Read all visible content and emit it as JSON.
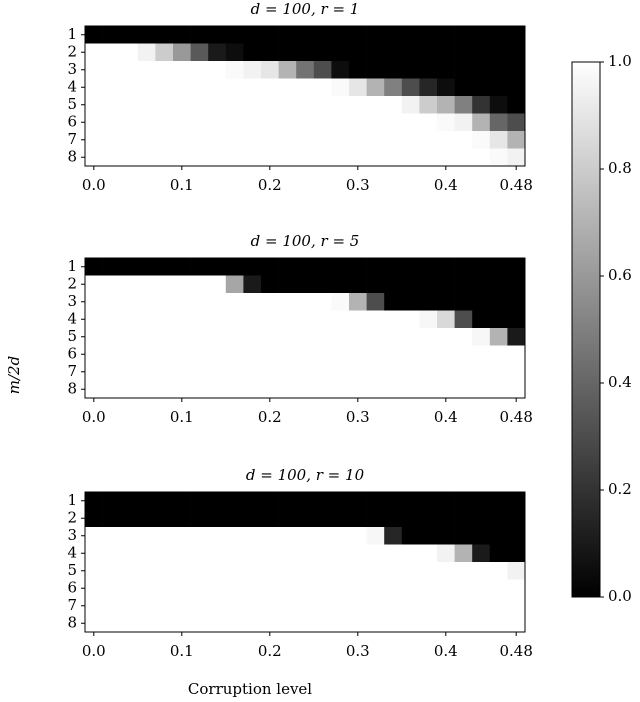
{
  "chart_data": [
    {
      "type": "heatmap",
      "title": "d = 100, r = 1",
      "x": [
        0,
        0.02,
        0.04,
        0.06,
        0.08,
        0.1,
        0.12,
        0.14,
        0.16,
        0.18,
        0.2,
        0.22,
        0.24,
        0.26,
        0.28,
        0.3,
        0.32,
        0.34,
        0.36,
        0.38,
        0.4,
        0.42,
        0.44,
        0.46,
        0.48
      ],
      "y": [
        1,
        2,
        3,
        4,
        5,
        6,
        7,
        8
      ],
      "xlim": [
        -0.01,
        0.49
      ],
      "xticks": [
        {
          "value": 0,
          "label": "0.0"
        },
        0.1,
        0.2,
        0.3,
        0.4,
        0.48
      ],
      "values": [
        [
          0,
          0,
          0,
          0,
          0,
          0,
          0,
          0,
          0,
          0,
          0,
          0,
          0,
          0,
          0,
          0,
          0,
          0,
          0,
          0,
          0,
          0,
          0,
          0,
          0
        ],
        [
          1,
          1,
          1,
          0.95,
          0.8,
          0.6,
          0.35,
          0.1,
          0.05,
          0,
          0,
          0,
          0,
          0,
          0,
          0,
          0,
          0,
          0,
          0,
          0,
          0,
          0,
          0,
          0
        ],
        [
          1,
          1,
          1,
          1,
          1,
          1,
          1,
          1,
          0.98,
          0.95,
          0.9,
          0.7,
          0.45,
          0.3,
          0.05,
          0,
          0,
          0,
          0,
          0,
          0,
          0,
          0,
          0,
          0
        ],
        [
          1,
          1,
          1,
          1,
          1,
          1,
          1,
          1,
          1,
          1,
          1,
          1,
          1,
          1,
          0.98,
          0.9,
          0.7,
          0.5,
          0.3,
          0.15,
          0.05,
          0,
          0,
          0,
          0
        ],
        [
          1,
          1,
          1,
          1,
          1,
          1,
          1,
          1,
          1,
          1,
          1,
          1,
          1,
          1,
          1,
          1,
          1,
          1,
          0.95,
          0.8,
          0.7,
          0.5,
          0.2,
          0.05,
          0
        ],
        [
          1,
          1,
          1,
          1,
          1,
          1,
          1,
          1,
          1,
          1,
          1,
          1,
          1,
          1,
          1,
          1,
          1,
          1,
          1,
          1,
          0.98,
          0.95,
          0.7,
          0.4,
          0.3
        ],
        [
          1,
          1,
          1,
          1,
          1,
          1,
          1,
          1,
          1,
          1,
          1,
          1,
          1,
          1,
          1,
          1,
          1,
          1,
          1,
          1,
          1,
          1,
          0.98,
          0.9,
          0.7
        ],
        [
          1,
          1,
          1,
          1,
          1,
          1,
          1,
          1,
          1,
          1,
          1,
          1,
          1,
          1,
          1,
          1,
          1,
          1,
          1,
          1,
          1,
          1,
          1,
          0.98,
          0.95
        ]
      ]
    },
    {
      "type": "heatmap",
      "title": "d = 100, r = 5",
      "x": [
        0,
        0.02,
        0.04,
        0.06,
        0.08,
        0.1,
        0.12,
        0.14,
        0.16,
        0.18,
        0.2,
        0.22,
        0.24,
        0.26,
        0.28,
        0.3,
        0.32,
        0.34,
        0.36,
        0.38,
        0.4,
        0.42,
        0.44,
        0.46,
        0.48
      ],
      "y": [
        1,
        2,
        3,
        4,
        5,
        6,
        7,
        8
      ],
      "xlim": [
        -0.01,
        0.49
      ],
      "xticks": [
        {
          "value": 0,
          "label": "0.0"
        },
        0.1,
        0.2,
        0.3,
        0.4,
        0.48
      ],
      "values": [
        [
          0,
          0,
          0,
          0,
          0,
          0,
          0,
          0,
          0,
          0,
          0,
          0,
          0,
          0,
          0,
          0,
          0,
          0,
          0,
          0,
          0,
          0,
          0,
          0,
          0
        ],
        [
          1,
          1,
          1,
          1,
          1,
          1,
          1,
          1,
          0.65,
          0.1,
          0,
          0,
          0,
          0,
          0,
          0,
          0,
          0,
          0,
          0,
          0,
          0,
          0,
          0,
          0
        ],
        [
          1,
          1,
          1,
          1,
          1,
          1,
          1,
          1,
          1,
          1,
          1,
          1,
          1,
          1,
          0.98,
          0.7,
          0.3,
          0,
          0,
          0,
          0,
          0,
          0,
          0,
          0
        ],
        [
          1,
          1,
          1,
          1,
          1,
          1,
          1,
          1,
          1,
          1,
          1,
          1,
          1,
          1,
          1,
          1,
          1,
          1,
          1,
          0.97,
          0.85,
          0.3,
          0,
          0,
          0
        ],
        [
          1,
          1,
          1,
          1,
          1,
          1,
          1,
          1,
          1,
          1,
          1,
          1,
          1,
          1,
          1,
          1,
          1,
          1,
          1,
          1,
          1,
          1,
          0.97,
          0.7,
          0.1
        ],
        [
          1,
          1,
          1,
          1,
          1,
          1,
          1,
          1,
          1,
          1,
          1,
          1,
          1,
          1,
          1,
          1,
          1,
          1,
          1,
          1,
          1,
          1,
          1,
          1,
          1
        ],
        [
          1,
          1,
          1,
          1,
          1,
          1,
          1,
          1,
          1,
          1,
          1,
          1,
          1,
          1,
          1,
          1,
          1,
          1,
          1,
          1,
          1,
          1,
          1,
          1,
          1
        ],
        [
          1,
          1,
          1,
          1,
          1,
          1,
          1,
          1,
          1,
          1,
          1,
          1,
          1,
          1,
          1,
          1,
          1,
          1,
          1,
          1,
          1,
          1,
          1,
          1,
          1
        ]
      ]
    },
    {
      "type": "heatmap",
      "title": "d = 100, r = 10",
      "x": [
        0,
        0.02,
        0.04,
        0.06,
        0.08,
        0.1,
        0.12,
        0.14,
        0.16,
        0.18,
        0.2,
        0.22,
        0.24,
        0.26,
        0.28,
        0.3,
        0.32,
        0.34,
        0.36,
        0.38,
        0.4,
        0.42,
        0.44,
        0.46,
        0.48
      ],
      "y": [
        1,
        2,
        3,
        4,
        5,
        6,
        7,
        8
      ],
      "xlim": [
        -0.01,
        0.49
      ],
      "xticks": [
        {
          "value": 0,
          "label": "0.0"
        },
        0.1,
        0.2,
        0.3,
        0.4,
        0.48
      ],
      "values": [
        [
          0,
          0,
          0,
          0,
          0,
          0,
          0,
          0,
          0,
          0,
          0,
          0,
          0,
          0,
          0,
          0,
          0,
          0,
          0,
          0,
          0,
          0,
          0,
          0,
          0
        ],
        [
          0,
          0,
          0,
          0,
          0,
          0,
          0,
          0,
          0,
          0,
          0,
          0,
          0,
          0,
          0,
          0,
          0,
          0,
          0,
          0,
          0,
          0,
          0,
          0,
          0
        ],
        [
          1,
          1,
          1,
          1,
          1,
          1,
          1,
          1,
          1,
          1,
          1,
          1,
          1,
          1,
          1,
          1,
          0.97,
          0.15,
          0,
          0,
          0,
          0,
          0,
          0,
          0
        ],
        [
          1,
          1,
          1,
          1,
          1,
          1,
          1,
          1,
          1,
          1,
          1,
          1,
          1,
          1,
          1,
          1,
          1,
          1,
          1,
          1,
          0.95,
          0.7,
          0.1,
          0,
          0
        ],
        [
          1,
          1,
          1,
          1,
          1,
          1,
          1,
          1,
          1,
          1,
          1,
          1,
          1,
          1,
          1,
          1,
          1,
          1,
          1,
          1,
          1,
          1,
          1,
          1,
          0.95
        ],
        [
          1,
          1,
          1,
          1,
          1,
          1,
          1,
          1,
          1,
          1,
          1,
          1,
          1,
          1,
          1,
          1,
          1,
          1,
          1,
          1,
          1,
          1,
          1,
          1,
          1
        ],
        [
          1,
          1,
          1,
          1,
          1,
          1,
          1,
          1,
          1,
          1,
          1,
          1,
          1,
          1,
          1,
          1,
          1,
          1,
          1,
          1,
          1,
          1,
          1,
          1,
          1
        ],
        [
          1,
          1,
          1,
          1,
          1,
          1,
          1,
          1,
          1,
          1,
          1,
          1,
          1,
          1,
          1,
          1,
          1,
          1,
          1,
          1,
          1,
          1,
          1,
          1,
          1
        ]
      ]
    }
  ],
  "xlabel": "Corruption level",
  "ylabel": "m/2d",
  "colorbar": {
    "lim": [
      0,
      1
    ],
    "ticks": [
      {
        "value": 0,
        "label": "0.0"
      },
      0.2,
      0.4,
      0.6,
      0.8,
      {
        "value": 1,
        "label": "1.0"
      }
    ]
  }
}
